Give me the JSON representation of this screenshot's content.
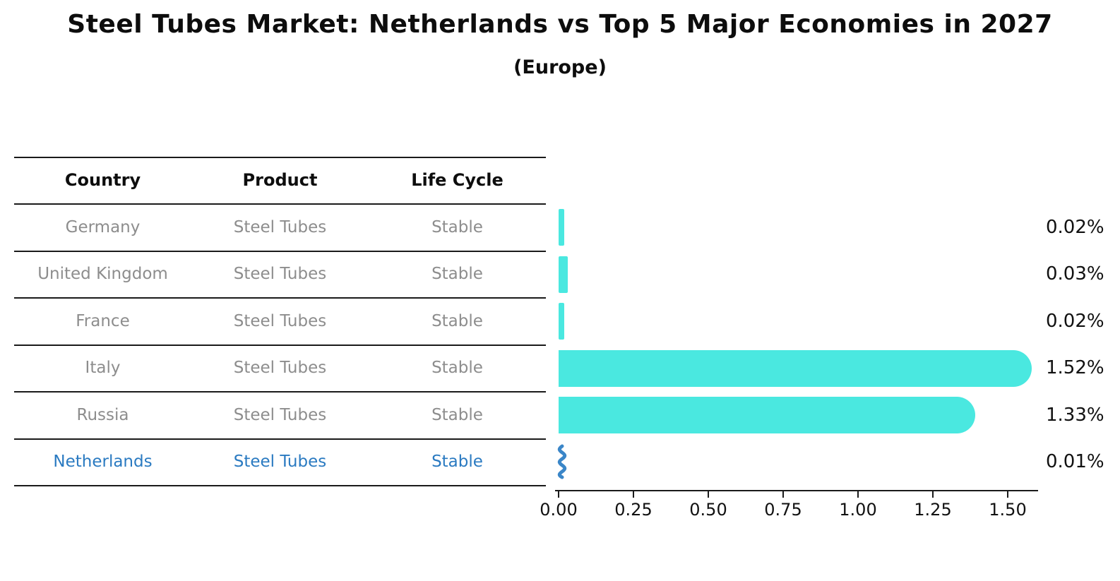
{
  "title": "Steel Tubes Market: Netherlands vs Top 5 Major Economies in 2027",
  "subtitle": "(Europe)",
  "table": {
    "headers": [
      "Country",
      "Product",
      "Life Cycle"
    ],
    "rows": [
      {
        "country": "Germany",
        "product": "Steel Tubes",
        "life_cycle": "Stable",
        "highlight": false
      },
      {
        "country": "United Kingdom",
        "product": "Steel Tubes",
        "life_cycle": "Stable",
        "highlight": false
      },
      {
        "country": "France",
        "product": "Steel Tubes",
        "life_cycle": "Stable",
        "highlight": false
      },
      {
        "country": "Italy",
        "product": "Steel Tubes",
        "life_cycle": "Stable",
        "highlight": false
      },
      {
        "country": "Russia",
        "product": "Steel Tubes",
        "life_cycle": "Stable",
        "highlight": false
      },
      {
        "country": "Netherlands",
        "product": "Steel Tubes",
        "life_cycle": "Stable",
        "highlight": true
      }
    ]
  },
  "chart_data": {
    "type": "bar",
    "orientation": "horizontal",
    "title": "Steel Tubes Market: Netherlands vs Top 5 Major Economies in 2027",
    "subtitle": "(Europe)",
    "categories": [
      "Germany",
      "United Kingdom",
      "France",
      "Italy",
      "Russia",
      "Netherlands"
    ],
    "values": [
      0.02,
      0.03,
      0.02,
      1.52,
      1.33,
      0.01
    ],
    "value_labels": [
      "0.02%",
      "0.03%",
      "0.02%",
      "1.52%",
      "1.33%",
      "0.01%"
    ],
    "xlim": [
      0,
      1.6
    ],
    "xticks": [
      "0.00",
      "0.25",
      "0.50",
      "0.75",
      "1.00",
      "1.25",
      "1.50"
    ],
    "grid": false,
    "legend": false,
    "bar_color": "#4AE8E0",
    "highlight_color": "#3A86C8",
    "highlight_index": 5
  },
  "colors": {
    "bar": "#4AE8E0",
    "highlight_blue": "#2A7AC1",
    "row_text_gray": "#8D8D8D",
    "line_black": "#1A1A1A"
  }
}
